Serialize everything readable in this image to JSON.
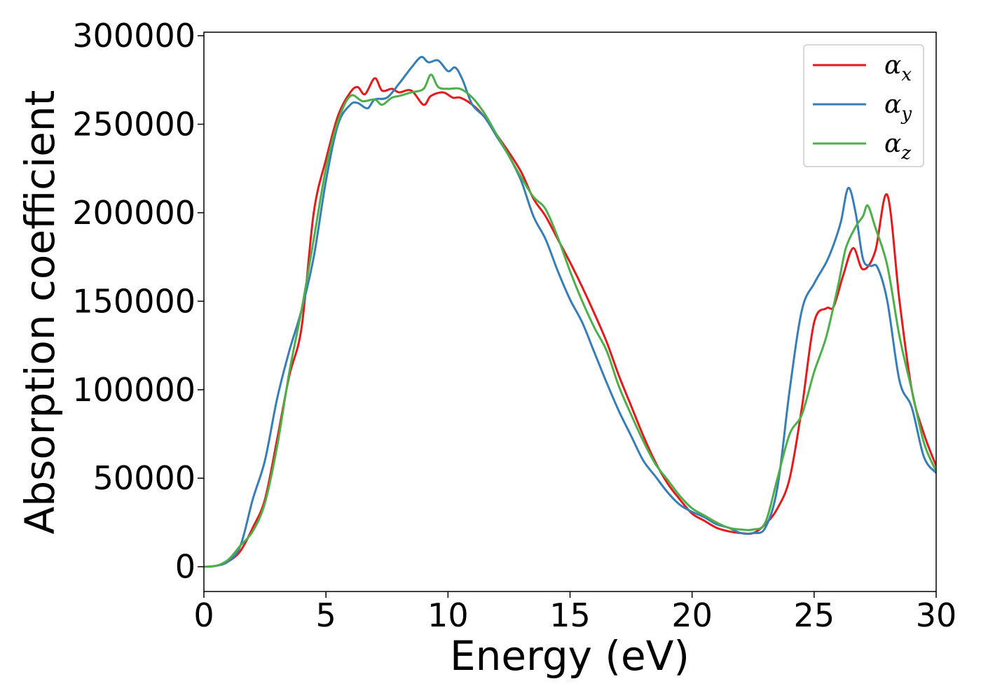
{
  "chart_data": {
    "type": "line",
    "xlabel": "Energy (eV)",
    "ylabel": "Absorption coefficient",
    "xlim": [
      0,
      30
    ],
    "ylim": [
      -14000,
      302000
    ],
    "x_ticks": [
      "0",
      "5",
      "10",
      "15",
      "20",
      "25",
      "30"
    ],
    "y_ticks": [
      "0",
      "50000",
      "100000",
      "150000",
      "200000",
      "250000",
      "300000"
    ],
    "grid": false,
    "legend_position": "top-right",
    "series": [
      {
        "name": "αx",
        "symbol": "α",
        "subscript": "x",
        "color": "#e41a1c",
        "points": [
          [
            0,
            0
          ],
          [
            0.5,
            500
          ],
          [
            1,
            3000
          ],
          [
            1.5,
            9000
          ],
          [
            2,
            22000
          ],
          [
            2.5,
            38000
          ],
          [
            3,
            72000
          ],
          [
            3.5,
            108000
          ],
          [
            4,
            135000
          ],
          [
            4.5,
            200000
          ],
          [
            5,
            230000
          ],
          [
            5.5,
            255000
          ],
          [
            6,
            268000
          ],
          [
            6.3,
            271000
          ],
          [
            6.6,
            267000
          ],
          [
            7,
            276000
          ],
          [
            7.3,
            269000
          ],
          [
            7.7,
            270000
          ],
          [
            8,
            268000
          ],
          [
            8.5,
            269000
          ],
          [
            9,
            261000
          ],
          [
            9.3,
            266000
          ],
          [
            9.8,
            268000
          ],
          [
            10.2,
            265000
          ],
          [
            10.5,
            265000
          ],
          [
            11,
            261000
          ],
          [
            11.5,
            254000
          ],
          [
            12,
            244000
          ],
          [
            12.5,
            234000
          ],
          [
            13,
            223000
          ],
          [
            13.5,
            208000
          ],
          [
            14,
            198000
          ],
          [
            14.5,
            185000
          ],
          [
            15,
            172000
          ],
          [
            15.5,
            158000
          ],
          [
            16,
            143000
          ],
          [
            16.5,
            127000
          ],
          [
            17,
            108000
          ],
          [
            17.5,
            91000
          ],
          [
            18,
            74000
          ],
          [
            18.5,
            59000
          ],
          [
            19,
            47000
          ],
          [
            19.5,
            38000
          ],
          [
            20,
            30000
          ],
          [
            20.5,
            26000
          ],
          [
            21,
            22000
          ],
          [
            21.5,
            20000
          ],
          [
            22,
            19000
          ],
          [
            22.5,
            19000
          ],
          [
            23,
            24000
          ],
          [
            23.5,
            33000
          ],
          [
            24,
            50000
          ],
          [
            24.5,
            90000
          ],
          [
            25,
            138000
          ],
          [
            25.5,
            146000
          ],
          [
            25.8,
            147000
          ],
          [
            26.2,
            165000
          ],
          [
            26.6,
            180000
          ],
          [
            27,
            168000
          ],
          [
            27.5,
            178000
          ],
          [
            28,
            210000
          ],
          [
            28.5,
            150000
          ],
          [
            29,
            100000
          ],
          [
            29.5,
            75000
          ],
          [
            30,
            57000
          ]
        ]
      },
      {
        "name": "αy",
        "symbol": "α",
        "subscript": "y",
        "color": "#377eb8",
        "points": [
          [
            0,
            0
          ],
          [
            0.5,
            500
          ],
          [
            1,
            3000
          ],
          [
            1.5,
            12000
          ],
          [
            2,
            38000
          ],
          [
            2.5,
            60000
          ],
          [
            3,
            95000
          ],
          [
            3.5,
            122000
          ],
          [
            4,
            145000
          ],
          [
            4.5,
            175000
          ],
          [
            5,
            218000
          ],
          [
            5.5,
            250000
          ],
          [
            6,
            261000
          ],
          [
            6.3,
            262000
          ],
          [
            6.7,
            259000
          ],
          [
            7,
            264000
          ],
          [
            7.5,
            265000
          ],
          [
            8,
            273000
          ],
          [
            8.5,
            282000
          ],
          [
            8.9,
            288000
          ],
          [
            9.2,
            285000
          ],
          [
            9.6,
            286000
          ],
          [
            10,
            280000
          ],
          [
            10.3,
            282000
          ],
          [
            10.6,
            275000
          ],
          [
            11,
            261000
          ],
          [
            11.5,
            254000
          ],
          [
            12,
            243000
          ],
          [
            12.5,
            232000
          ],
          [
            13,
            218000
          ],
          [
            13.5,
            198000
          ],
          [
            14,
            185000
          ],
          [
            14.5,
            167000
          ],
          [
            15,
            151000
          ],
          [
            15.5,
            138000
          ],
          [
            16,
            121000
          ],
          [
            16.5,
            104000
          ],
          [
            17,
            88000
          ],
          [
            17.5,
            74000
          ],
          [
            18,
            60000
          ],
          [
            18.5,
            51000
          ],
          [
            19,
            42000
          ],
          [
            19.5,
            35000
          ],
          [
            20,
            31000
          ],
          [
            20.5,
            28000
          ],
          [
            21,
            24000
          ],
          [
            21.5,
            22000
          ],
          [
            22,
            19000
          ],
          [
            22.5,
            19000
          ],
          [
            23,
            22000
          ],
          [
            23.5,
            45000
          ],
          [
            24,
            100000
          ],
          [
            24.5,
            145000
          ],
          [
            25,
            160000
          ],
          [
            25.5,
            172000
          ],
          [
            25.8,
            182000
          ],
          [
            26.1,
            195000
          ],
          [
            26.4,
            214000
          ],
          [
            26.7,
            200000
          ],
          [
            27,
            174000
          ],
          [
            27.3,
            170000
          ],
          [
            27.6,
            169000
          ],
          [
            28,
            150000
          ],
          [
            28.5,
            105000
          ],
          [
            29,
            90000
          ],
          [
            29.5,
            62000
          ],
          [
            30,
            53000
          ]
        ]
      },
      {
        "name": "αz",
        "symbol": "α",
        "subscript": "z",
        "color": "#4daf4a",
        "points": [
          [
            0,
            0
          ],
          [
            0.5,
            500
          ],
          [
            1,
            4000
          ],
          [
            1.5,
            12000
          ],
          [
            2,
            20000
          ],
          [
            2.5,
            36000
          ],
          [
            3,
            68000
          ],
          [
            3.5,
            110000
          ],
          [
            4,
            145000
          ],
          [
            4.5,
            185000
          ],
          [
            5,
            225000
          ],
          [
            5.5,
            252000
          ],
          [
            6,
            266000
          ],
          [
            6.5,
            263000
          ],
          [
            7,
            264000
          ],
          [
            7.3,
            261000
          ],
          [
            7.7,
            265000
          ],
          [
            8,
            266000
          ],
          [
            8.5,
            268000
          ],
          [
            9,
            270000
          ],
          [
            9.3,
            278000
          ],
          [
            9.6,
            271000
          ],
          [
            10,
            270000
          ],
          [
            10.5,
            270000
          ],
          [
            11,
            265000
          ],
          [
            11.5,
            256000
          ],
          [
            12,
            244000
          ],
          [
            12.5,
            232000
          ],
          [
            13,
            220000
          ],
          [
            13.5,
            209000
          ],
          [
            14,
            202000
          ],
          [
            14.5,
            186000
          ],
          [
            15,
            167000
          ],
          [
            15.5,
            150000
          ],
          [
            16,
            135000
          ],
          [
            16.5,
            122000
          ],
          [
            17,
            102000
          ],
          [
            17.5,
            86000
          ],
          [
            18,
            71000
          ],
          [
            18.5,
            58000
          ],
          [
            19,
            49000
          ],
          [
            19.5,
            40000
          ],
          [
            20,
            33000
          ],
          [
            20.5,
            29000
          ],
          [
            21,
            25000
          ],
          [
            21.5,
            22000
          ],
          [
            22,
            21000
          ],
          [
            22.5,
            21000
          ],
          [
            23,
            25000
          ],
          [
            23.5,
            50000
          ],
          [
            24,
            75000
          ],
          [
            24.5,
            86000
          ],
          [
            25,
            110000
          ],
          [
            25.5,
            130000
          ],
          [
            26,
            160000
          ],
          [
            26.3,
            180000
          ],
          [
            26.7,
            192000
          ],
          [
            27,
            198000
          ],
          [
            27.2,
            204000
          ],
          [
            27.5,
            192000
          ],
          [
            28,
            170000
          ],
          [
            28.5,
            130000
          ],
          [
            29,
            100000
          ],
          [
            29.5,
            70000
          ],
          [
            30,
            54000
          ]
        ]
      }
    ]
  }
}
